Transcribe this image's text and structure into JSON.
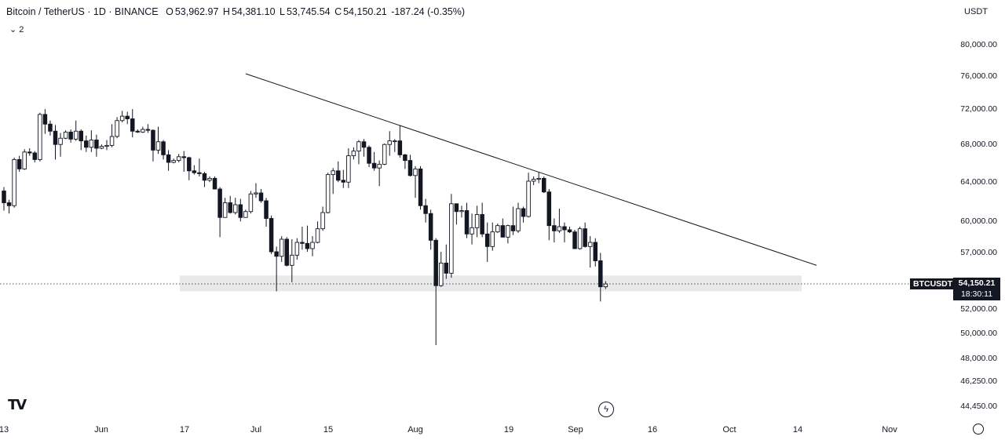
{
  "header": {
    "symbol": "Bitcoin / TetherUS · 1D · BINANCE",
    "open_label": "O",
    "open": "53,962.97",
    "high_label": "H",
    "high": "54,381.10",
    "low_label": "L",
    "low": "53,745.54",
    "close_label": "C",
    "close": "54,150.21",
    "change": "-187.24 (-0.35%)",
    "indicator_count": "2",
    "currency": "USDT"
  },
  "badge": {
    "symbol": "BTCUSDT",
    "price": "54,150.21",
    "countdown": "18:30:11"
  },
  "logo": "TV",
  "colors": {
    "up": "#ffffff",
    "down": "#131722",
    "wick": "#131722",
    "trendline": "#131722",
    "zone": "#e9e9ea"
  },
  "chart_data": {
    "type": "candlestick",
    "y_ticks": [
      "80,000.00",
      "76,000.00",
      "72,000.00",
      "68,000.00",
      "64,000.00",
      "60,000.00",
      "57,000.00",
      "52,000.00",
      "50,000.00",
      "48,000.00",
      "46,250.00",
      "44,450.00"
    ],
    "y_tick_values": [
      80000,
      76000,
      72000,
      68000,
      64000,
      60000,
      57000,
      52000,
      50000,
      48000,
      46250,
      44450
    ],
    "x_ticks": [
      "13",
      "Jun",
      "17",
      "Jul",
      "15",
      "Aug",
      "19",
      "Sep",
      "16",
      "Oct",
      "14",
      "Nov"
    ],
    "current_price": 54150.21,
    "support_zone": [
      53500,
      54900
    ],
    "trendline": {
      "from": [
        "2024-06-29",
        76200
      ],
      "to": [
        "2024-10-18",
        55800
      ]
    },
    "candles": [
      [
        "2024-05-13",
        63000,
        63400,
        61000,
        61800
      ],
      [
        "2024-05-14",
        61800,
        62100,
        60700,
        61500
      ],
      [
        "2024-05-15",
        61500,
        66500,
        61300,
        66300
      ],
      [
        "2024-05-16",
        66300,
        66700,
        65000,
        65300
      ],
      [
        "2024-05-17",
        65300,
        67400,
        65200,
        67100
      ],
      [
        "2024-05-18",
        67100,
        67500,
        66700,
        67000
      ],
      [
        "2024-05-19",
        67000,
        67200,
        66000,
        66300
      ],
      [
        "2024-05-20",
        66300,
        71500,
        66100,
        71300
      ],
      [
        "2024-05-21",
        71300,
        71900,
        69100,
        70200
      ],
      [
        "2024-05-22",
        70200,
        70600,
        68900,
        69400
      ],
      [
        "2024-05-23",
        69400,
        70100,
        66300,
        67900
      ],
      [
        "2024-05-24",
        67900,
        69200,
        66600,
        68600
      ],
      [
        "2024-05-25",
        68600,
        69500,
        68500,
        69300
      ],
      [
        "2024-05-26",
        69300,
        69600,
        68100,
        68500
      ],
      [
        "2024-05-27",
        68500,
        70600,
        68300,
        69400
      ],
      [
        "2024-05-28",
        69400,
        69600,
        67300,
        68300
      ],
      [
        "2024-05-29",
        68300,
        68900,
        67100,
        67600
      ],
      [
        "2024-05-30",
        67600,
        69500,
        67100,
        68400
      ],
      [
        "2024-05-31",
        68400,
        69000,
        66600,
        67500
      ],
      [
        "2024-06-01",
        67500,
        67900,
        67400,
        67700
      ],
      [
        "2024-06-02",
        67700,
        68400,
        67300,
        67800
      ],
      [
        "2024-06-03",
        67800,
        70200,
        67600,
        68800
      ],
      [
        "2024-06-04",
        68800,
        71000,
        68600,
        70600
      ],
      [
        "2024-06-05",
        70600,
        71700,
        70400,
        71100
      ],
      [
        "2024-06-06",
        71100,
        71600,
        70200,
        70800
      ],
      [
        "2024-06-07",
        70800,
        71900,
        68700,
        69400
      ],
      [
        "2024-06-08",
        69400,
        69600,
        69200,
        69300
      ],
      [
        "2024-06-09",
        69300,
        69900,
        69200,
        69600
      ],
      [
        "2024-06-10",
        69600,
        70200,
        69200,
        69500
      ],
      [
        "2024-06-11",
        69500,
        69600,
        66100,
        67300
      ],
      [
        "2024-06-12",
        67300,
        69900,
        66900,
        68200
      ],
      [
        "2024-06-13",
        68200,
        68400,
        66300,
        66800
      ],
      [
        "2024-06-14",
        66800,
        67300,
        65100,
        66000
      ],
      [
        "2024-06-15",
        66000,
        66400,
        65900,
        66200
      ],
      [
        "2024-06-16",
        66200,
        66900,
        66000,
        66600
      ],
      [
        "2024-06-17",
        66600,
        67200,
        65000,
        66500
      ],
      [
        "2024-06-18",
        66500,
        66600,
        64100,
        65100
      ],
      [
        "2024-06-19",
        65100,
        65700,
        64700,
        64900
      ],
      [
        "2024-06-20",
        64900,
        66400,
        64500,
        64800
      ],
      [
        "2024-06-21",
        64800,
        65000,
        63400,
        64100
      ],
      [
        "2024-06-22",
        64100,
        64500,
        63900,
        64300
      ],
      [
        "2024-06-23",
        64300,
        64500,
        63200,
        63200
      ],
      [
        "2024-06-24",
        63200,
        63400,
        58400,
        60300
      ],
      [
        "2024-06-25",
        60300,
        62300,
        60300,
        61800
      ],
      [
        "2024-06-26",
        61800,
        62500,
        60700,
        60800
      ],
      [
        "2024-06-27",
        60800,
        62300,
        60600,
        61600
      ],
      [
        "2024-06-28",
        61600,
        62200,
        59900,
        60300
      ],
      [
        "2024-06-29",
        60300,
        61100,
        60300,
        60900
      ],
      [
        "2024-06-30",
        60900,
        63000,
        60700,
        62700
      ],
      [
        "2024-07-01",
        62700,
        63800,
        62300,
        62800
      ],
      [
        "2024-07-02",
        62800,
        63200,
        61800,
        62000
      ],
      [
        "2024-07-03",
        62000,
        62300,
        59400,
        60200
      ],
      [
        "2024-07-04",
        60200,
        60500,
        56800,
        57000
      ],
      [
        "2024-07-05",
        57000,
        57500,
        53500,
        56600
      ],
      [
        "2024-07-06",
        56600,
        58500,
        56100,
        58200
      ],
      [
        "2024-07-07",
        58200,
        58400,
        55700,
        55800
      ],
      [
        "2024-07-08",
        55800,
        58200,
        54300,
        56700
      ],
      [
        "2024-07-09",
        56700,
        58300,
        56300,
        57900
      ],
      [
        "2024-07-10",
        57900,
        59400,
        57200,
        57800
      ],
      [
        "2024-07-11",
        57800,
        59500,
        57000,
        57300
      ],
      [
        "2024-07-12",
        57300,
        58500,
        56600,
        57900
      ],
      [
        "2024-07-13",
        57900,
        59900,
        57800,
        59200
      ],
      [
        "2024-07-14",
        59200,
        61400,
        59000,
        60800
      ],
      [
        "2024-07-15",
        60800,
        64900,
        60700,
        64700
      ],
      [
        "2024-07-16",
        64700,
        65400,
        62700,
        65100
      ],
      [
        "2024-07-17",
        65100,
        66100,
        63900,
        64100
      ],
      [
        "2024-07-18",
        64100,
        65200,
        63300,
        63900
      ],
      [
        "2024-07-19",
        63900,
        67500,
        63300,
        66700
      ],
      [
        "2024-07-20",
        66700,
        67600,
        66300,
        67200
      ],
      [
        "2024-07-21",
        67200,
        68400,
        65800,
        68200
      ],
      [
        "2024-07-22",
        68200,
        68500,
        66600,
        67600
      ],
      [
        "2024-07-23",
        67600,
        67800,
        65500,
        65900
      ],
      [
        "2024-07-24",
        65900,
        67100,
        65100,
        65400
      ],
      [
        "2024-07-25",
        65400,
        66200,
        63500,
        65800
      ],
      [
        "2024-07-26",
        65800,
        68000,
        65700,
        67900
      ],
      [
        "2024-07-27",
        67900,
        69400,
        66700,
        68300
      ],
      [
        "2024-07-28",
        68300,
        68500,
        67100,
        68300
      ],
      [
        "2024-07-29",
        68300,
        70000,
        66500,
        66800
      ],
      [
        "2024-07-30",
        66800,
        66900,
        65300,
        66200
      ],
      [
        "2024-07-31",
        66200,
        66800,
        64500,
        64600
      ],
      [
        "2024-08-01",
        64600,
        65600,
        62300,
        65300
      ],
      [
        "2024-08-02",
        65300,
        65600,
        61100,
        61500
      ],
      [
        "2024-08-03",
        61500,
        62200,
        59800,
        60700
      ],
      [
        "2024-08-04",
        60700,
        61100,
        57200,
        58100
      ],
      [
        "2024-08-05",
        58100,
        58300,
        49000,
        54000
      ],
      [
        "2024-08-06",
        54000,
        57000,
        53900,
        56000
      ],
      [
        "2024-08-07",
        56000,
        57700,
        54600,
        55100
      ],
      [
        "2024-08-08",
        55100,
        62700,
        54700,
        61700
      ],
      [
        "2024-08-09",
        61700,
        61700,
        59600,
        60900
      ],
      [
        "2024-08-10",
        60900,
        61500,
        60300,
        61000
      ],
      [
        "2024-08-11",
        61000,
        61800,
        58300,
        58700
      ],
      [
        "2024-08-12",
        58700,
        60700,
        57700,
        59300
      ],
      [
        "2024-08-13",
        59300,
        61500,
        58400,
        60600
      ],
      [
        "2024-08-14",
        60600,
        61800,
        58400,
        58700
      ],
      [
        "2024-08-15",
        58700,
        59800,
        56100,
        57500
      ],
      [
        "2024-08-16",
        57500,
        59800,
        57100,
        58900
      ],
      [
        "2024-08-17",
        58900,
        59700,
        58800,
        59500
      ],
      [
        "2024-08-18",
        59500,
        60200,
        58400,
        58400
      ],
      [
        "2024-08-19",
        58400,
        59600,
        57800,
        59500
      ],
      [
        "2024-08-20",
        59500,
        61400,
        58600,
        59000
      ],
      [
        "2024-08-21",
        59000,
        61800,
        58800,
        61200
      ],
      [
        "2024-08-22",
        61200,
        61400,
        59800,
        60400
      ],
      [
        "2024-08-23",
        60400,
        64900,
        60300,
        64000
      ],
      [
        "2024-08-24",
        64000,
        64500,
        63600,
        64200
      ],
      [
        "2024-08-25",
        64200,
        65000,
        63800,
        64300
      ],
      [
        "2024-08-26",
        64300,
        64500,
        62800,
        62900
      ],
      [
        "2024-08-27",
        62900,
        63200,
        58100,
        59500
      ],
      [
        "2024-08-28",
        59500,
        60200,
        57900,
        59000
      ],
      [
        "2024-08-29",
        59000,
        61200,
        58800,
        59400
      ],
      [
        "2024-08-30",
        59400,
        59800,
        57900,
        59100
      ],
      [
        "2024-08-31",
        59100,
        59400,
        58800,
        58900
      ],
      [
        "2024-09-01",
        58900,
        59100,
        57300,
        57300
      ],
      [
        "2024-09-02",
        57300,
        59400,
        57200,
        59200
      ],
      [
        "2024-09-03",
        59200,
        59800,
        57400,
        57500
      ],
      [
        "2024-09-04",
        57500,
        58500,
        55600,
        57900
      ],
      [
        "2024-09-05",
        57900,
        58300,
        55700,
        56200
      ],
      [
        "2024-09-06",
        56200,
        56900,
        52600,
        53900
      ],
      [
        "2024-09-07",
        53900,
        54400,
        53700,
        54150
      ]
    ]
  }
}
